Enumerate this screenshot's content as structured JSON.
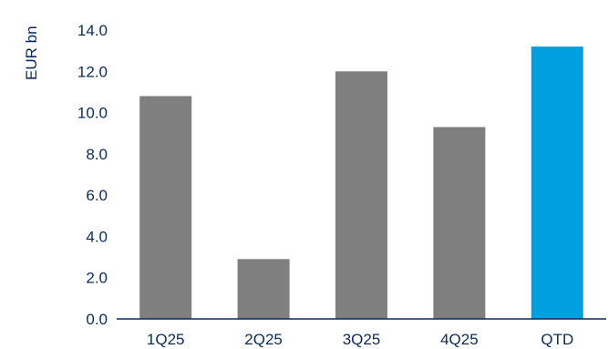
{
  "chart_data": {
    "type": "bar",
    "ylabel": "EUR bn",
    "categories": [
      "1Q25",
      "2Q25",
      "3Q25",
      "4Q25",
      "QTD"
    ],
    "values": [
      10.8,
      2.9,
      12.0,
      9.3,
      13.2
    ],
    "bar_colors": [
      "#7f7f7f",
      "#7f7f7f",
      "#7f7f7f",
      "#7f7f7f",
      "#00a0e0"
    ],
    "ylim": [
      0,
      14
    ],
    "yticks": [
      "0.0",
      "2.0",
      "4.0",
      "6.0",
      "8.0",
      "10.0",
      "12.0",
      "14.0"
    ],
    "grid": false
  },
  "colors": {
    "text": "#0a2a5c",
    "axis": "#0a2a5c",
    "bar_default": "#7f7f7f",
    "bar_highlight": "#00a0e0"
  }
}
